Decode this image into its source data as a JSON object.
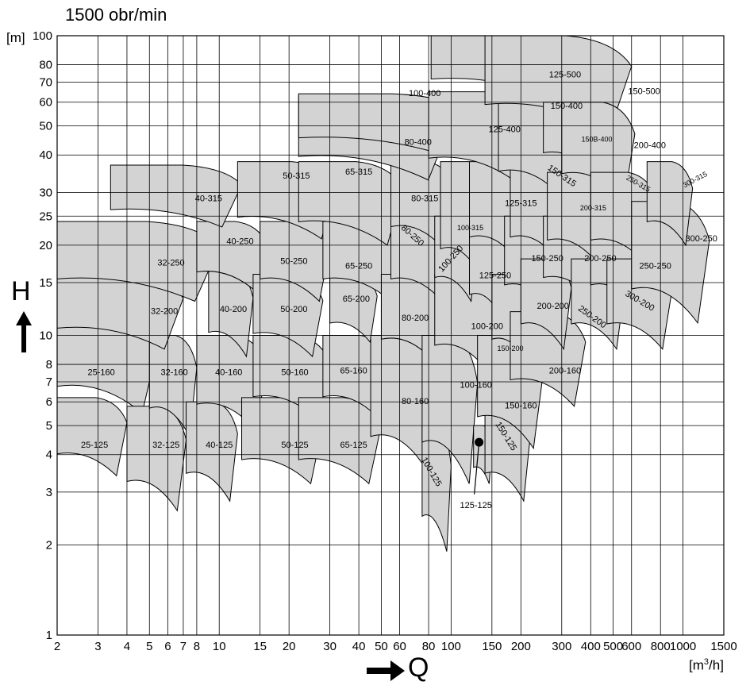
{
  "title": "1500 obr/min",
  "y_unit": "[m]",
  "x_unit_main": "[m",
  "x_unit_sup": "3",
  "x_unit_tail": "/h]",
  "y_axis_letter": "H",
  "x_axis_letter": "Q",
  "chart_data": {
    "type": "area",
    "title": "1500 obr/min",
    "xlabel": "Q [m3/h]",
    "ylabel": "H [m]",
    "xscale": "log",
    "yscale": "log",
    "xlim": [
      2,
      1500
    ],
    "ylim": [
      1,
      100
    ],
    "grid": true,
    "x_ticks": [
      2,
      3,
      4,
      5,
      6,
      7,
      8,
      10,
      15,
      20,
      30,
      40,
      50,
      60,
      80,
      100,
      150,
      200,
      300,
      400,
      500,
      600,
      800,
      1000,
      1500
    ],
    "y_ticks": [
      1,
      2,
      3,
      4,
      5,
      6,
      7,
      8,
      10,
      15,
      20,
      25,
      30,
      40,
      50,
      60,
      70,
      80,
      100
    ],
    "fields": [
      {
        "name": "25-125",
        "q": [
          2,
          4.0
        ],
        "h": [
          3.4,
          6.2
        ]
      },
      {
        "name": "25-160",
        "q": [
          2,
          5.4
        ],
        "h": [
          5.5,
          11.5
        ]
      },
      {
        "name": "32-125",
        "q": [
          4.0,
          7.2
        ],
        "h": [
          2.6,
          5.8
        ]
      },
      {
        "name": "32-160",
        "q": [
          5.0,
          8.0
        ],
        "h": [
          4.6,
          10.0
        ]
      },
      {
        "name": "32-200",
        "q": [
          2,
          7.0
        ],
        "h": [
          9.0,
          16.0
        ]
      },
      {
        "name": "32-250",
        "q": [
          2,
          10.0
        ],
        "h": [
          13.0,
          24.0
        ]
      },
      {
        "name": "40-125",
        "q": [
          7.2,
          12.0
        ],
        "h": [
          2.8,
          6.0
        ]
      },
      {
        "name": "40-160",
        "q": [
          8.0,
          16.0
        ],
        "h": [
          4.8,
          10.0
        ]
      },
      {
        "name": "40-200",
        "q": [
          9.0,
          14.0
        ],
        "h": [
          8.5,
          16.5
        ]
      },
      {
        "name": "40-250",
        "q": [
          8.0,
          16.0
        ],
        "h": [
          14.0,
          24.0
        ]
      },
      {
        "name": "40-315",
        "q": [
          3.4,
          12.5
        ],
        "h": [
          23.0,
          37.0
        ]
      },
      {
        "name": "50-125",
        "q": [
          12.5,
          28.0
        ],
        "h": [
          3.2,
          6.2
        ]
      },
      {
        "name": "50-160",
        "q": [
          14.0,
          30.0
        ],
        "h": [
          5.2,
          10.0
        ]
      },
      {
        "name": "50-200",
        "q": [
          14.0,
          28.0
        ],
        "h": [
          8.5,
          16.0
        ]
      },
      {
        "name": "50-250",
        "q": [
          15.0,
          30.0
        ],
        "h": [
          13.0,
          24.0
        ]
      },
      {
        "name": "50-315",
        "q": [
          12.0,
          32.0
        ],
        "h": [
          21.0,
          38.0
        ]
      },
      {
        "name": "65-125",
        "q": [
          22.0,
          50.0
        ],
        "h": [
          3.2,
          6.2
        ]
      },
      {
        "name": "65-160",
        "q": [
          28.0,
          55.0
        ],
        "h": [
          5.2,
          10.0
        ]
      },
      {
        "name": "65-200",
        "q": [
          30.0,
          48.0
        ],
        "h": [
          9.5,
          16.0
        ]
      },
      {
        "name": "65-250",
        "q": [
          28.0,
          62.0
        ],
        "h": [
          13.0,
          24.0
        ]
      },
      {
        "name": "65-315",
        "q": [
          22.0,
          62.0
        ],
        "h": [
          20.0,
          38.0
        ]
      },
      {
        "name": "80-160",
        "q": [
          45.0,
          90.0
        ],
        "h": [
          3.4,
          10.0
        ]
      },
      {
        "name": "80-200",
        "q": [
          50.0,
          95.0
        ],
        "h": [
          8.0,
          16.0
        ]
      },
      {
        "name": "80-250",
        "q": [
          55.0,
          100.0
        ],
        "h": [
          13.0,
          24.0
        ]
      },
      {
        "name": "80-315",
        "q": [
          55.0,
          105.0
        ],
        "h": [
          19.0,
          38.0
        ]
      },
      {
        "name": "80-400",
        "q": [
          22.0,
          100.0
        ],
        "h": [
          33.0,
          63.0
        ]
      },
      {
        "name": "100-125",
        "q": [
          75.0,
          100.0
        ],
        "h": [
          1.9,
          5.0
        ]
      },
      {
        "name": "100-160",
        "q": [
          75.0,
          130.0
        ],
        "h": [
          3.2,
          10.0
        ]
      },
      {
        "name": "100-200",
        "q": [
          85.0,
          160.0
        ],
        "h": [
          7.5,
          16.0
        ]
      },
      {
        "name": "100-250",
        "q": [
          85.0,
          130.0
        ],
        "h": [
          13.0,
          25.0
        ]
      },
      {
        "name": "100-315",
        "q": [
          90.0,
          150.0
        ],
        "h": [
          15.0,
          38.0
        ]
      },
      {
        "name": "100-400",
        "q": [
          22.0,
          120.0
        ],
        "h": [
          40.0,
          64.0
        ]
      },
      {
        "name": "125-125",
        "q": [
          125.0,
          150.0
        ],
        "h": [
          3.2,
          5.0
        ]
      },
      {
        "name": "125-250",
        "q": [
          120.0,
          180.0
        ],
        "h": [
          11.0,
          24.0
        ]
      },
      {
        "name": "125-315",
        "q": [
          120.0,
          220.0
        ],
        "h": [
          17.0,
          38.0
        ]
      },
      {
        "name": "125-400",
        "q": [
          80.0,
          230.0
        ],
        "h": [
          32.0,
          65.0
        ]
      },
      {
        "name": "125-500",
        "q": [
          82.0,
          320.0
        ],
        "h": [
          63.0,
          100.0
        ]
      },
      {
        "name": "150-125",
        "q": [
          140.0,
          220.0
        ],
        "h": [
          2.8,
          6.0
        ]
      },
      {
        "name": "150-160",
        "q": [
          130.0,
          250.0
        ],
        "h": [
          4.2,
          10.0
        ]
      },
      {
        "name": "150-200",
        "q": [
          150.0,
          230.0
        ],
        "h": [
          8.0,
          16.0
        ]
      },
      {
        "name": "150-250",
        "q": [
          170.0,
          300.0
        ],
        "h": [
          12.0,
          25.0
        ]
      },
      {
        "name": "150-315",
        "q": [
          180.0,
          330.0
        ],
        "h": [
          17.0,
          38.0
        ]
      },
      {
        "name": "150-400",
        "q": [
          160.0,
          350.0
        ],
        "h": [
          28.0,
          64.0
        ]
      },
      {
        "name": "150-500",
        "q": [
          140.0,
          600.0
        ],
        "h": [
          48.0,
          100.0
        ]
      },
      {
        "name": "150B-400",
        "q": [
          250.0,
          450.0
        ],
        "h": [
          35.0,
          60.0
        ]
      },
      {
        "name": "200-160",
        "q": [
          180.0,
          380.0
        ],
        "h": [
          5.8,
          12.0
        ]
      },
      {
        "name": "200-200",
        "q": [
          200.0,
          330.0
        ],
        "h": [
          9.0,
          18.0
        ]
      },
      {
        "name": "200-250",
        "q": [
          250.0,
          450.0
        ],
        "h": [
          13.0,
          25.0
        ]
      },
      {
        "name": "200-315",
        "q": [
          260.0,
          480.0
        ],
        "h": [
          17.0,
          35.0
        ]
      },
      {
        "name": "200-400",
        "q": [
          300.0,
          620.0
        ],
        "h": [
          28.0,
          60.0
        ]
      },
      {
        "name": "250-200",
        "q": [
          330.0,
          560.0
        ],
        "h": [
          9.0,
          18.0
        ]
      },
      {
        "name": "250-250",
        "q": [
          400.0,
          700.0
        ],
        "h": [
          12.0,
          25.0
        ]
      },
      {
        "name": "250-315",
        "q": [
          400.0,
          780.0
        ],
        "h": [
          17.0,
          35.0
        ]
      },
      {
        "name": "300-200",
        "q": [
          470.0,
          900.0
        ],
        "h": [
          9.0,
          18.0
        ]
      },
      {
        "name": "300-250",
        "q": [
          600.0,
          1300.0
        ],
        "h": [
          11.0,
          28.0
        ]
      },
      {
        "name": "300-315",
        "q": [
          700.0,
          1100.0
        ],
        "h": [
          20.0,
          38.0
        ]
      }
    ],
    "labels": [
      {
        "text": "25-125",
        "q": 2.9,
        "h": 4.3,
        "size": 11,
        "rot": 0
      },
      {
        "text": "25-160",
        "q": 3.1,
        "h": 7.5,
        "size": 11,
        "rot": 0
      },
      {
        "text": "32-125",
        "q": 5.9,
        "h": 4.3,
        "size": 11,
        "rot": 0
      },
      {
        "text": "32-160",
        "q": 6.4,
        "h": 7.5,
        "size": 11,
        "rot": 0
      },
      {
        "text": "32-200",
        "q": 5.8,
        "h": 12.0,
        "size": 11,
        "rot": 0
      },
      {
        "text": "32-250",
        "q": 6.2,
        "h": 17.4,
        "size": 11,
        "rot": 0
      },
      {
        "text": "40-125",
        "q": 10.0,
        "h": 4.3,
        "size": 11,
        "rot": 0
      },
      {
        "text": "40-160",
        "q": 11.0,
        "h": 7.5,
        "size": 11,
        "rot": 0
      },
      {
        "text": "40-200",
        "q": 11.5,
        "h": 12.2,
        "size": 11,
        "rot": 0
      },
      {
        "text": "40-250",
        "q": 12.3,
        "h": 20.5,
        "size": 11,
        "rot": 0
      },
      {
        "text": "40-315",
        "q": 9.0,
        "h": 28.5,
        "size": 11,
        "rot": 0
      },
      {
        "text": "50-125",
        "q": 21.2,
        "h": 4.3,
        "size": 11,
        "rot": 0
      },
      {
        "text": "50-160",
        "q": 21.2,
        "h": 7.5,
        "size": 11,
        "rot": 0
      },
      {
        "text": "50-200",
        "q": 21.0,
        "h": 12.2,
        "size": 11,
        "rot": 0
      },
      {
        "text": "50-250",
        "q": 21.0,
        "h": 17.6,
        "size": 11,
        "rot": 0
      },
      {
        "text": "50-315",
        "q": 21.5,
        "h": 34.0,
        "size": 11,
        "rot": 0
      },
      {
        "text": "65-125",
        "q": 38.0,
        "h": 4.3,
        "size": 11,
        "rot": 0
      },
      {
        "text": "65-160",
        "q": 38.0,
        "h": 7.6,
        "size": 11,
        "rot": 0
      },
      {
        "text": "65-200",
        "q": 39.0,
        "h": 13.2,
        "size": 11,
        "rot": 0
      },
      {
        "text": "65-250",
        "q": 40.0,
        "h": 17.0,
        "size": 11,
        "rot": 0
      },
      {
        "text": "65-315",
        "q": 40.0,
        "h": 35.0,
        "size": 11,
        "rot": 0
      },
      {
        "text": "80-160",
        "q": 70.0,
        "h": 6.0,
        "size": 11,
        "rot": 0
      },
      {
        "text": "80-200",
        "q": 70.0,
        "h": 11.4,
        "size": 11,
        "rot": 0
      },
      {
        "text": "80-250",
        "q": 68.0,
        "h": 21.5,
        "size": 11,
        "rot": 42
      },
      {
        "text": "80-315",
        "q": 77.0,
        "h": 28.5,
        "size": 11,
        "rot": 0
      },
      {
        "text": "80-400",
        "q": 72.0,
        "h": 44.0,
        "size": 11,
        "rot": 0
      },
      {
        "text": "100-125",
        "q": 82.0,
        "h": 3.5,
        "size": 11,
        "rot": 60
      },
      {
        "text": "100-160",
        "q": 128.0,
        "h": 6.8,
        "size": 11,
        "rot": 0
      },
      {
        "text": "100-200",
        "q": 143.0,
        "h": 10.7,
        "size": 11,
        "rot": 0
      },
      {
        "text": "100-250",
        "q": 100.0,
        "h": 18.0,
        "size": 11,
        "rot": -48
      },
      {
        "text": "100-315",
        "q": 121.0,
        "h": 22.8,
        "size": 9,
        "rot": 0
      },
      {
        "text": "100-400",
        "q": 77.0,
        "h": 64.0,
        "size": 11,
        "rot": 0
      },
      {
        "text": "125-125",
        "q": 128.0,
        "h": 2.7,
        "size": 11,
        "rot": 0
      },
      {
        "text": "125-250",
        "q": 155.0,
        "h": 15.8,
        "size": 11,
        "rot": 0
      },
      {
        "text": "125-315",
        "q": 200.0,
        "h": 27.5,
        "size": 11,
        "rot": 0
      },
      {
        "text": "125-400",
        "q": 170.0,
        "h": 48.5,
        "size": 11,
        "rot": 0
      },
      {
        "text": "125-500",
        "q": 310.0,
        "h": 74.0,
        "size": 11,
        "rot": 0
      },
      {
        "text": "150-125",
        "q": 172.0,
        "h": 4.6,
        "size": 11,
        "rot": 58
      },
      {
        "text": "150-160",
        "q": 200.0,
        "h": 5.8,
        "size": 11,
        "rot": 0
      },
      {
        "text": "150-200",
        "q": 180.0,
        "h": 9.0,
        "size": 9,
        "rot": 0
      },
      {
        "text": "150-250",
        "q": 260.0,
        "h": 18.0,
        "size": 11,
        "rot": 0
      },
      {
        "text": "150-315",
        "q": 300.0,
        "h": 34.0,
        "size": 11,
        "rot": 34
      },
      {
        "text": "150-400",
        "q": 315.0,
        "h": 58.0,
        "size": 11,
        "rot": 0
      },
      {
        "text": "150-500",
        "q": 680.0,
        "h": 65.0,
        "size": 11,
        "rot": 0
      },
      {
        "text": "150B-400",
        "q": 425.0,
        "h": 45.0,
        "size": 9,
        "rot": 0
      },
      {
        "text": "200-160",
        "q": 310.0,
        "h": 7.6,
        "size": 11,
        "rot": 0
      },
      {
        "text": "200-200",
        "q": 275.0,
        "h": 12.5,
        "size": 11,
        "rot": 0
      },
      {
        "text": "200-250",
        "q": 440.0,
        "h": 18.0,
        "size": 11,
        "rot": 0
      },
      {
        "text": "200-315",
        "q": 410.0,
        "h": 26.5,
        "size": 9,
        "rot": 0
      },
      {
        "text": "200-400",
        "q": 720.0,
        "h": 43.0,
        "size": 11,
        "rot": 0
      },
      {
        "text": "250-200",
        "q": 405.0,
        "h": 11.5,
        "size": 11,
        "rot": 36
      },
      {
        "text": "250-250",
        "q": 760.0,
        "h": 17.0,
        "size": 11,
        "rot": 0
      },
      {
        "text": "250-315",
        "q": 640.0,
        "h": 32.0,
        "size": 9,
        "rot": 30
      },
      {
        "text": "300-200",
        "q": 650.0,
        "h": 13.0,
        "size": 11,
        "rot": 30
      },
      {
        "text": "300-250",
        "q": 1200.0,
        "h": 21.0,
        "size": 11,
        "rot": 0
      },
      {
        "text": "300-315",
        "q": 1130.0,
        "h": 33.0,
        "size": 9,
        "rot": -28
      }
    ],
    "annotation": {
      "text": "125-125",
      "q": 132.0,
      "h": 4.4
    }
  }
}
